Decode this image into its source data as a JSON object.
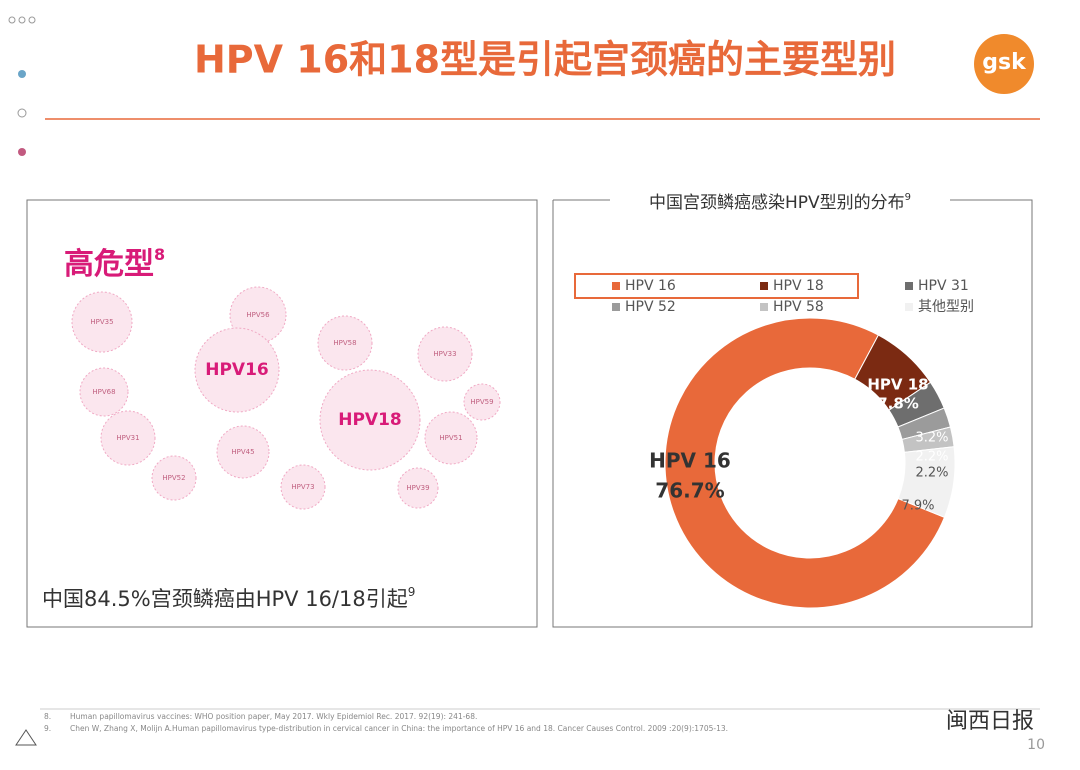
{
  "header": {
    "title": "HPV 16和18型是引起宫颈癌的主要型别",
    "logo": "gsk"
  },
  "left_panel": {
    "heading": "高危型",
    "heading_ref": "8",
    "virus_labels": [
      "HPV35",
      "HPV56",
      "HPV58",
      "HPV33",
      "HPV16",
      "HPV68",
      "HPV18",
      "HPV59",
      "HPV31",
      "HPV45",
      "HPV51",
      "HPV52",
      "HPV73",
      "HPV39"
    ],
    "caption": "中国84.5%宫颈鳞癌由HPV 16/18引起",
    "caption_ref": "9"
  },
  "chart_data": {
    "type": "pie",
    "title": "中国宫颈鳞癌感染HPV型别的分布",
    "title_ref": "9",
    "categories": [
      "HPV 16",
      "HPV 18",
      "HPV 31",
      "HPV 52",
      "HPV 58",
      "其他型别"
    ],
    "values": [
      76.7,
      7.8,
      3.2,
      2.2,
      2.2,
      7.9
    ],
    "value_labels": [
      "76.7%",
      "7.8%",
      "3.2%",
      "2.2%",
      "2.2%",
      "7.9%"
    ],
    "colors": [
      "#e8693a",
      "#7b2a12",
      "#6e6e6e",
      "#9b9b9b",
      "#c3c3c3",
      "#f1f1f1"
    ],
    "donut": true
  },
  "footer": {
    "references": [
      "8.",
      "Human papillomavirus vaccines: WHO position paper, May 2017. Wkly Epidemiol Rec. 2017. 92(19): 241-68.",
      "9.",
      "Chen W, Zhang X, Molijn A.Human papillomavirus type-distribution in cervical cancer in China: the importance of HPV 16 and 18. Cancer Causes Control. 2009 :20(9):1705-13."
    ],
    "watermark": "闽西日报",
    "page_number": "10"
  }
}
